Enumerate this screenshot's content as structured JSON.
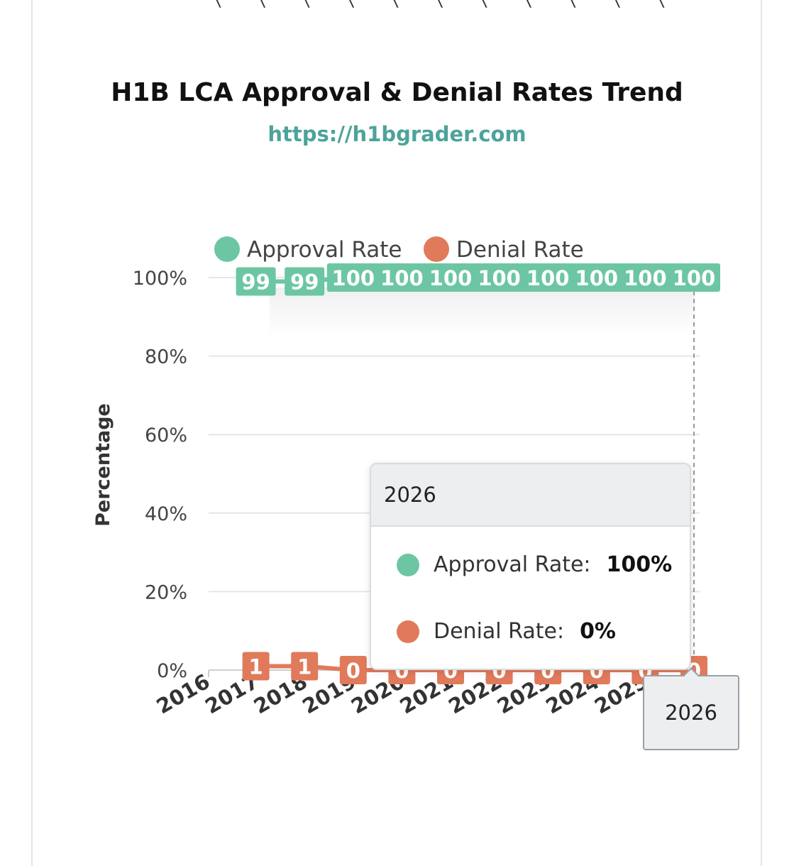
{
  "page": {
    "top_marks": "\\ \\ \\ \\ \\ \\ \\ \\ \\ \\ \\"
  },
  "chart_data": {
    "type": "line",
    "title": "H1B LCA Approval & Denial Rates Trend",
    "subtitle": "https://h1bgrader.com",
    "xlabel": "",
    "ylabel": "Percentage",
    "categories": [
      "2016",
      "2017",
      "2018",
      "2019",
      "2020",
      "2021",
      "2022",
      "2023",
      "2024",
      "2025",
      "2026"
    ],
    "y_ticks": [
      "0%",
      "20%",
      "40%",
      "60%",
      "80%",
      "100%"
    ],
    "ylim": [
      0,
      100
    ],
    "grid": true,
    "legend_position": "top",
    "series": [
      {
        "name": "Approval Rate",
        "color": "#6cc6a3",
        "x": [
          "2017",
          "2018",
          "2019",
          "2020",
          "2021",
          "2022",
          "2023",
          "2024",
          "2025",
          "2026"
        ],
        "values": [
          99,
          99,
          100,
          100,
          100,
          100,
          100,
          100,
          100,
          100
        ]
      },
      {
        "name": "Denial Rate",
        "color": "#e07a5a",
        "x": [
          "2017",
          "2018",
          "2019",
          "2020",
          "2021",
          "2022",
          "2023",
          "2024",
          "2025",
          "2026"
        ],
        "values": [
          1,
          1,
          0,
          0,
          0,
          0,
          0,
          0,
          0,
          0
        ]
      }
    ]
  },
  "tooltip": {
    "header": "2026",
    "approval_label": "Approval Rate:",
    "approval_value": "100%",
    "denial_label": "Denial Rate:",
    "denial_value": "0%"
  },
  "crosshair_label": "2026"
}
